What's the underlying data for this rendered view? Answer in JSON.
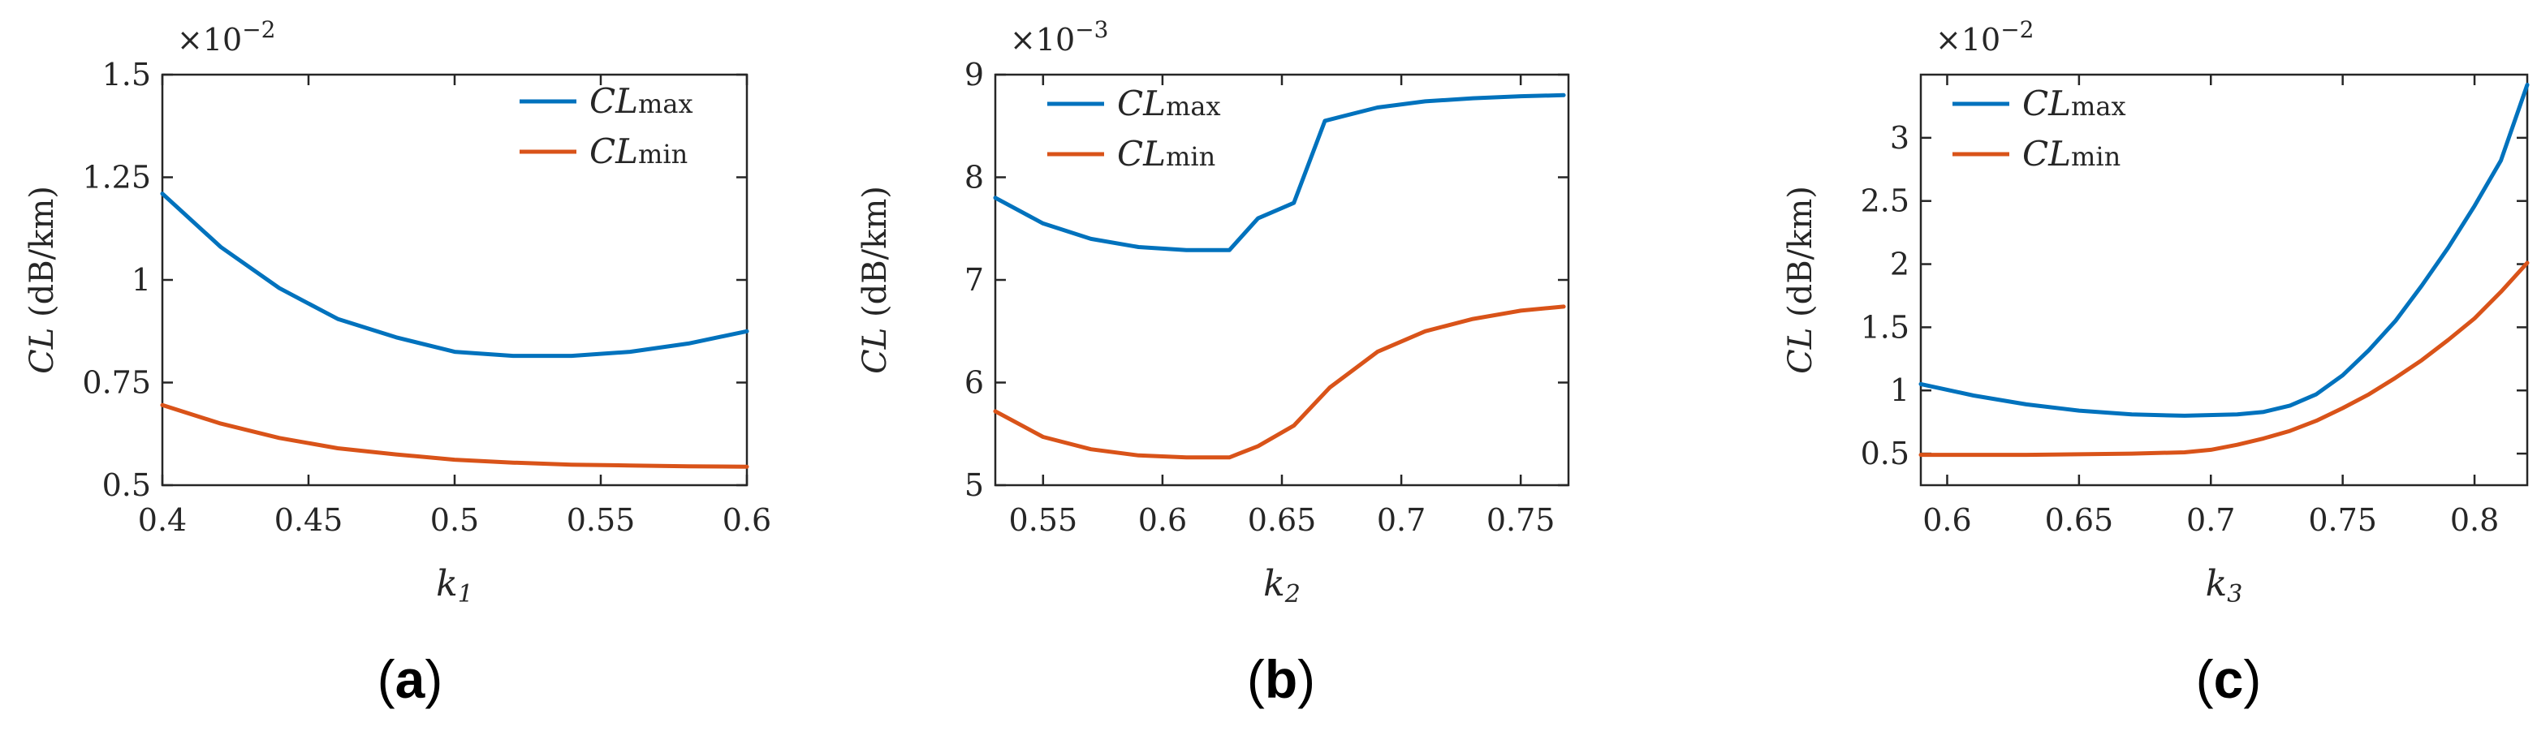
{
  "colors": {
    "max": "#0072BD",
    "min": "#D95319",
    "axis": "#262626"
  },
  "chart_data": [
    {
      "type": "line",
      "panel_label": {
        "open": "(",
        "letter": "a",
        "close": ")"
      },
      "xlabel": {
        "base": "k",
        "sub": "1"
      },
      "ylabel": {
        "italic": "CL",
        "rest": " (dB/km)"
      },
      "multiplier": {
        "base": "×10",
        "exp": "−2"
      },
      "xlim": [
        0.4,
        0.6
      ],
      "ylim": [
        0.5,
        1.5
      ],
      "xticks": [
        0.4,
        0.45,
        0.5,
        0.55,
        0.6
      ],
      "xtick_labels": [
        "0.4",
        "0.45",
        "0.5",
        "0.55",
        "0.6"
      ],
      "yticks": [
        0.5,
        0.75,
        1,
        1.25,
        1.5
      ],
      "ytick_labels": [
        "0.5",
        "0.75",
        "1",
        "1.25",
        "1.5"
      ],
      "legend": {
        "position": "top-right"
      },
      "series": [
        {
          "name": "CLmax",
          "name_italic": "CL",
          "name_sub": "max",
          "color_key": "max",
          "x": [
            0.4,
            0.42,
            0.44,
            0.46,
            0.48,
            0.5,
            0.52,
            0.54,
            0.56,
            0.58,
            0.6
          ],
          "y": [
            1.21,
            1.08,
            0.98,
            0.905,
            0.86,
            0.825,
            0.815,
            0.815,
            0.825,
            0.845,
            0.875
          ]
        },
        {
          "name": "CLmin",
          "name_italic": "CL",
          "name_sub": "min",
          "color_key": "min",
          "x": [
            0.4,
            0.42,
            0.44,
            0.46,
            0.48,
            0.5,
            0.52,
            0.54,
            0.56,
            0.58,
            0.6
          ],
          "y": [
            0.695,
            0.65,
            0.615,
            0.59,
            0.575,
            0.562,
            0.555,
            0.55,
            0.548,
            0.546,
            0.545
          ]
        }
      ]
    },
    {
      "type": "line",
      "panel_label": {
        "open": "(",
        "letter": "b",
        "close": ")"
      },
      "xlabel": {
        "base": "k",
        "sub": "2"
      },
      "ylabel": {
        "italic": "CL",
        "rest": " (dB/km)"
      },
      "multiplier": {
        "base": "×10",
        "exp": "−3"
      },
      "xlim": [
        0.53,
        0.77
      ],
      "ylim": [
        5,
        9
      ],
      "xticks": [
        0.55,
        0.6,
        0.65,
        0.7,
        0.75
      ],
      "xtick_labels": [
        "0.55",
        "0.6",
        "0.65",
        "0.7",
        "0.75"
      ],
      "yticks": [
        5,
        6,
        7,
        8,
        9
      ],
      "ytick_labels": [
        "5",
        "6",
        "7",
        "8",
        "9"
      ],
      "legend": {
        "position": "top-left"
      },
      "series": [
        {
          "name": "CLmax",
          "name_italic": "CL",
          "name_sub": "max",
          "color_key": "max",
          "x": [
            0.53,
            0.55,
            0.57,
            0.59,
            0.61,
            0.628,
            0.64,
            0.655,
            0.668,
            0.69,
            0.71,
            0.73,
            0.75,
            0.768
          ],
          "y": [
            7.8,
            7.55,
            7.4,
            7.32,
            7.29,
            7.29,
            7.6,
            7.75,
            8.55,
            8.68,
            8.74,
            8.77,
            8.79,
            8.8
          ]
        },
        {
          "name": "CLmin",
          "name_italic": "CL",
          "name_sub": "min",
          "color_key": "min",
          "x": [
            0.53,
            0.55,
            0.57,
            0.59,
            0.61,
            0.628,
            0.64,
            0.655,
            0.67,
            0.69,
            0.71,
            0.73,
            0.75,
            0.768
          ],
          "y": [
            5.72,
            5.47,
            5.35,
            5.29,
            5.27,
            5.27,
            5.38,
            5.58,
            5.95,
            6.3,
            6.5,
            6.62,
            6.7,
            6.74
          ]
        }
      ]
    },
    {
      "type": "line",
      "panel_label": {
        "open": "(",
        "letter": "c",
        "close": ")"
      },
      "xlabel": {
        "base": "k",
        "sub": "3"
      },
      "ylabel": {
        "italic": "CL",
        "rest": " (dB/km)"
      },
      "multiplier": {
        "base": "×10",
        "exp": "−2"
      },
      "xlim": [
        0.59,
        0.82
      ],
      "ylim": [
        0.25,
        3.5
      ],
      "xticks": [
        0.6,
        0.65,
        0.7,
        0.75,
        0.8
      ],
      "xtick_labels": [
        "0.6",
        "0.65",
        "0.7",
        "0.75",
        "0.8"
      ],
      "yticks": [
        0.5,
        1,
        1.5,
        2,
        2.5,
        3
      ],
      "ytick_labels": [
        "0.5",
        "1",
        "1.5",
        "2",
        "2.5",
        "3"
      ],
      "legend": {
        "position": "top-left"
      },
      "series": [
        {
          "name": "CLmax",
          "name_italic": "CL",
          "name_sub": "max",
          "color_key": "max",
          "x": [
            0.59,
            0.61,
            0.63,
            0.65,
            0.67,
            0.69,
            0.71,
            0.72,
            0.73,
            0.74,
            0.75,
            0.76,
            0.77,
            0.78,
            0.79,
            0.8,
            0.81,
            0.82
          ],
          "y": [
            1.05,
            0.96,
            0.89,
            0.84,
            0.81,
            0.8,
            0.81,
            0.83,
            0.88,
            0.97,
            1.12,
            1.32,
            1.55,
            1.83,
            2.13,
            2.46,
            2.82,
            3.42
          ]
        },
        {
          "name": "CLmin",
          "name_italic": "CL",
          "name_sub": "min",
          "color_key": "min",
          "x": [
            0.59,
            0.61,
            0.63,
            0.65,
            0.67,
            0.69,
            0.7,
            0.71,
            0.72,
            0.73,
            0.74,
            0.75,
            0.76,
            0.77,
            0.78,
            0.79,
            0.8,
            0.81,
            0.82
          ],
          "y": [
            0.49,
            0.49,
            0.49,
            0.495,
            0.5,
            0.51,
            0.53,
            0.57,
            0.62,
            0.68,
            0.76,
            0.86,
            0.97,
            1.1,
            1.24,
            1.4,
            1.57,
            1.78,
            2.01
          ]
        }
      ]
    }
  ]
}
